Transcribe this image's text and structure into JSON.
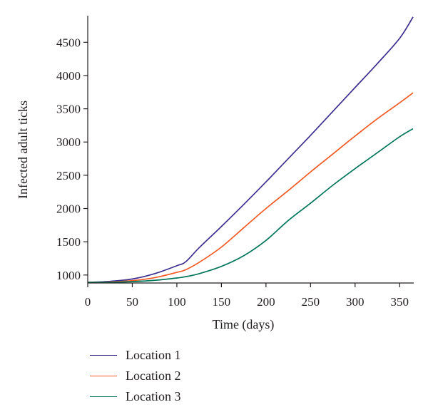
{
  "chart_data": {
    "type": "line",
    "title": "",
    "xlabel": "Time (days)",
    "ylabel": "Infected adult ticks",
    "xlim": [
      0,
      365
    ],
    "ylim": [
      880,
      4900
    ],
    "xticks": [
      0,
      50,
      100,
      150,
      200,
      250,
      300,
      350
    ],
    "yticks": [
      1000,
      1500,
      2000,
      2500,
      3000,
      3500,
      4000,
      4500
    ],
    "grid": false,
    "legend_position": "bottom",
    "x": [
      0,
      25,
      50,
      75,
      100,
      110,
      125,
      150,
      175,
      200,
      225,
      250,
      275,
      300,
      325,
      350,
      365
    ],
    "series": [
      {
        "name": "Location 1",
        "color": "#3b2e8f",
        "values": [
          890,
          905,
          940,
          1020,
          1140,
          1200,
          1410,
          1730,
          2060,
          2400,
          2750,
          3100,
          3460,
          3820,
          4180,
          4560,
          4880
        ]
      },
      {
        "name": "Location 2",
        "color": "#f15a24",
        "values": [
          890,
          895,
          915,
          960,
          1040,
          1080,
          1190,
          1420,
          1710,
          2000,
          2270,
          2550,
          2820,
          3090,
          3350,
          3590,
          3740
        ]
      },
      {
        "name": "Location 3",
        "color": "#00775c",
        "values": [
          890,
          890,
          900,
          920,
          955,
          975,
          1020,
          1130,
          1290,
          1520,
          1820,
          2080,
          2350,
          2600,
          2840,
          3080,
          3200
        ]
      }
    ]
  }
}
